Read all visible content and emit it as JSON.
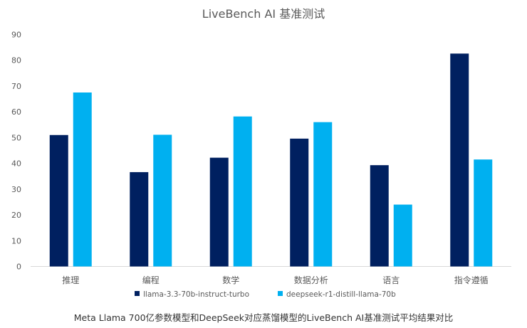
{
  "chart_data": {
    "type": "bar",
    "title": "LiveBench AI 基准测试",
    "xlabel": "",
    "ylabel": "",
    "categories": [
      "推理",
      "编程",
      "数学",
      "数据分析",
      "语言",
      "指令遵循"
    ],
    "series": [
      {
        "name": "llama-3.3-70b-instruct-turbo",
        "color": "#002060",
        "values": [
          51,
          36.6,
          42.2,
          49.6,
          39.3,
          82.6
        ]
      },
      {
        "name": "deepseek-r1-distill-llama-70b",
        "color": "#00b0f0",
        "values": [
          67.5,
          51.1,
          58.2,
          56,
          24,
          41.5
        ]
      }
    ],
    "ylim": [
      0,
      90
    ],
    "yticks": [
      0,
      10,
      20,
      30,
      40,
      50,
      60,
      70,
      80,
      90
    ],
    "grid": false,
    "legend_position": "bottom"
  },
  "caption": "Meta Llama 700亿参数模型和DeepSeek对应蒸馏模型的LiveBench AI基准测试平均结果对比"
}
